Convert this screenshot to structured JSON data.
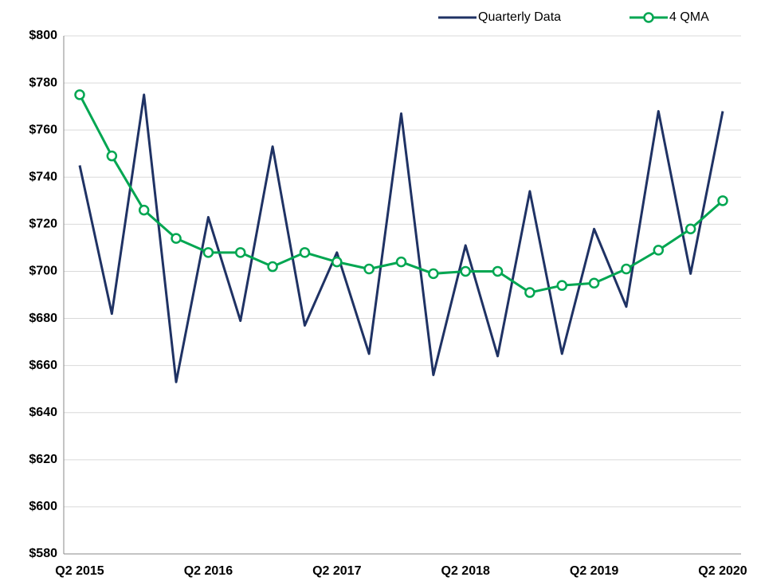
{
  "chart_data": {
    "type": "line",
    "categories": [
      "Q2 2015",
      null,
      null,
      null,
      "Q2 2016",
      null,
      null,
      null,
      "Q2 2017",
      null,
      null,
      null,
      "Q2 2018",
      null,
      null,
      null,
      "Q2 2019",
      null,
      null,
      null,
      "Q2 2020"
    ],
    "series": [
      {
        "name": "Quarterly Data",
        "color": "#1f3264",
        "marker": false,
        "values": [
          745,
          682,
          775,
          653,
          723,
          679,
          753,
          677,
          708,
          665,
          767,
          656,
          711,
          664,
          734,
          665,
          718,
          685,
          768,
          699,
          768
        ]
      },
      {
        "name": "4 QMA",
        "color": "#00a651",
        "marker": true,
        "values": [
          775,
          749,
          726,
          714,
          708,
          708,
          702,
          708,
          704,
          701,
          704,
          699,
          700,
          700,
          691,
          694,
          695,
          701,
          709,
          718,
          730
        ]
      }
    ],
    "ylim": [
      580,
      800
    ],
    "yticks": [
      {
        "value": 580,
        "label": "$580"
      },
      {
        "value": 600,
        "label": "$600"
      },
      {
        "value": 620,
        "label": "$620"
      },
      {
        "value": 640,
        "label": "$640"
      },
      {
        "value": 660,
        "label": "$660"
      },
      {
        "value": 680,
        "label": "$680"
      },
      {
        "value": 700,
        "label": "$700"
      },
      {
        "value": 720,
        "label": "$720"
      },
      {
        "value": 740,
        "label": "$740"
      },
      {
        "value": 760,
        "label": "$760"
      },
      {
        "value": 780,
        "label": "$780"
      },
      {
        "value": 800,
        "label": "$800"
      }
    ],
    "grid": true,
    "legend": "top-right"
  }
}
